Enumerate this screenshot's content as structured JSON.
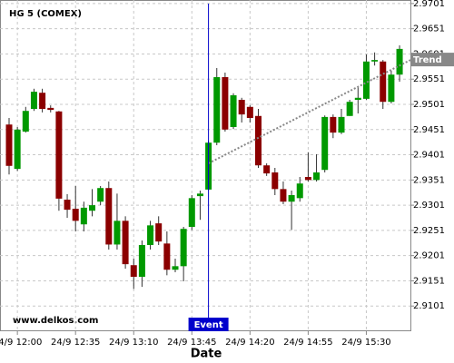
{
  "chart_data": {
    "type": "candlestick",
    "title": "HG 5 (COMEX)",
    "x_label": "Date",
    "watermark": "www.delkos.com",
    "categories": [
      null,
      "24/9 12:00",
      null,
      null,
      null,
      null,
      null,
      null,
      "24/9 12:35",
      null,
      null,
      null,
      null,
      null,
      null,
      "24/9 13:10",
      null,
      null,
      null,
      null,
      null,
      null,
      "24/9 13:45",
      null,
      null,
      null,
      null,
      null,
      null,
      "24/9 14:20",
      null,
      null,
      null,
      null,
      null,
      null,
      "24/9 14:55",
      null,
      null,
      null,
      null,
      null,
      null,
      "24/9 15:30",
      null,
      null,
      null,
      null
    ],
    "open": [
      2.9461,
      2.9373,
      2.9447,
      2.9492,
      2.9524,
      2.9494,
      2.9487,
      2.9312,
      2.9294,
      2.9263,
      2.929,
      2.9308,
      2.9335,
      2.9223,
      2.927,
      2.9182,
      2.9159,
      2.9222,
      2.9265,
      2.9225,
      2.9173,
      2.918,
      2.9258,
      2.9319,
      2.9332,
      2.9425,
      2.9555,
      2.9456,
      2.951,
      2.9496,
      2.9478,
      2.938,
      2.9366,
      2.9333,
      2.9308,
      2.9315,
      2.9357,
      2.9351,
      2.9371,
      2.9476,
      2.9445,
      2.9478,
      2.951,
      2.9512,
      2.9586,
      2.9586,
      2.9506,
      2.956
    ],
    "high": [
      2.9474,
      2.9456,
      2.9496,
      2.9532,
      2.9532,
      2.9499,
      2.9488,
      2.9323,
      2.9339,
      2.9308,
      2.9333,
      2.9339,
      2.9348,
      2.9324,
      2.9279,
      2.9195,
      2.9231,
      2.927,
      2.9279,
      2.9249,
      2.9195,
      2.9258,
      2.9321,
      2.933,
      2.9429,
      2.9573,
      2.9564,
      2.9523,
      2.9514,
      2.9499,
      2.9492,
      2.9384,
      2.9375,
      2.9348,
      2.933,
      2.9357,
      2.9406,
      2.9402,
      2.9479,
      2.9481,
      2.9492,
      2.951,
      2.9537,
      2.96,
      2.9604,
      2.9589,
      2.9568,
      2.9618
    ],
    "low": [
      2.9362,
      2.9369,
      2.9445,
      2.9488,
      2.9485,
      2.9485,
      2.929,
      2.9276,
      2.9249,
      2.9249,
      2.9279,
      2.9301,
      2.9213,
      2.9213,
      2.9175,
      2.9135,
      2.9139,
      2.9213,
      2.9222,
      2.9162,
      2.9168,
      2.915,
      2.9252,
      2.9272,
      2.933,
      2.942,
      2.9447,
      2.9452,
      2.9465,
      2.9465,
      2.9375,
      2.9359,
      2.9321,
      2.9303,
      2.9252,
      2.9308,
      2.9348,
      2.9348,
      2.9366,
      2.9434,
      2.9442,
      2.9478,
      2.9483,
      2.951,
      2.9578,
      2.9492,
      2.9503,
      2.9546
    ],
    "close": [
      2.9379,
      2.9451,
      2.9488,
      2.9526,
      2.9492,
      2.949,
      2.9314,
      2.9292,
      2.927,
      2.9296,
      2.9301,
      2.9335,
      2.9223,
      2.927,
      2.9184,
      2.9159,
      2.9222,
      2.9261,
      2.9229,
      2.9173,
      2.918,
      2.9254,
      2.9315,
      2.9324,
      2.9425,
      2.9555,
      2.9451,
      2.9519,
      2.9481,
      2.9474,
      2.938,
      2.9364,
      2.9333,
      2.9308,
      2.9321,
      2.9344,
      2.9351,
      2.9366,
      2.9476,
      2.9445,
      2.9476,
      2.9506,
      2.9514,
      2.9586,
      2.9589,
      2.9506,
      2.956,
      2.9611
    ],
    "up_color": "#009900",
    "down_color": "#8b0000",
    "ylim": [
      2.9051,
      2.9708
    ],
    "yticks": [
      2.9101,
      2.9151,
      2.9201,
      2.9251,
      2.9301,
      2.9351,
      2.9401,
      2.9451,
      2.9501,
      2.9551,
      2.9601,
      2.9651,
      2.9701
    ],
    "grid": true,
    "event": {
      "label": "Event",
      "x": 24,
      "color": "#0000cc"
    },
    "trend": {
      "label": "Trend",
      "x": [
        24,
        47
      ],
      "values": [
        2.9384,
        2.9578
      ],
      "color": "#888888"
    }
  }
}
